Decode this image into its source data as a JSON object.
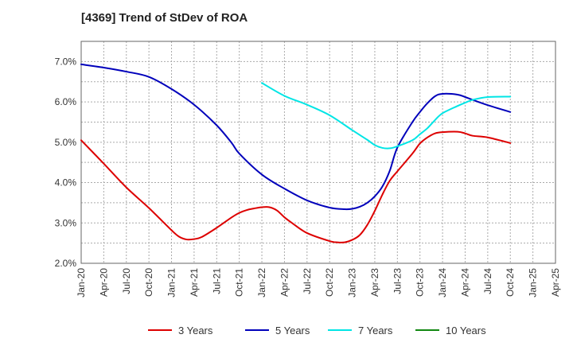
{
  "chart_data": {
    "type": "line",
    "title": "[4369]  Trend of StDev of ROA",
    "y_ticks": [
      "2.0%",
      "3.0%",
      "4.0%",
      "5.0%",
      "6.0%",
      "7.0%"
    ],
    "y_tick_values": [
      2.0,
      3.0,
      4.0,
      5.0,
      6.0,
      7.0
    ],
    "ylim": [
      2.0,
      7.5
    ],
    "x_ticks": [
      "Jan-20",
      "Apr-20",
      "Jul-20",
      "Oct-20",
      "Jan-21",
      "Apr-21",
      "Jul-21",
      "Oct-21",
      "Jan-22",
      "Apr-22",
      "Jul-22",
      "Oct-22",
      "Jan-23",
      "Apr-23",
      "Jul-23",
      "Oct-23",
      "Jan-24",
      "Apr-24",
      "Jul-24",
      "Oct-24",
      "Jan-25",
      "Apr-25"
    ],
    "xlim": [
      0,
      63
    ],
    "grid": true,
    "legend_position": "bottom",
    "series": [
      {
        "name": "3 Years",
        "color": "#dd0000",
        "x": [
          0,
          3,
          6,
          9,
          12,
          13,
          14,
          15,
          16,
          18,
          20,
          21,
          22,
          23,
          24,
          25,
          26,
          27,
          28,
          30,
          33,
          34,
          35,
          36,
          37,
          38,
          39,
          40,
          41,
          42,
          44,
          45,
          46,
          47,
          48,
          50,
          51,
          52,
          54,
          57
        ],
        "values": [
          5.05,
          4.47,
          3.88,
          3.37,
          2.82,
          2.66,
          2.59,
          2.6,
          2.65,
          2.88,
          3.14,
          3.25,
          3.32,
          3.36,
          3.39,
          3.39,
          3.31,
          3.14,
          3.0,
          2.75,
          2.55,
          2.52,
          2.52,
          2.58,
          2.7,
          2.95,
          3.3,
          3.7,
          4.05,
          4.28,
          4.72,
          4.97,
          5.12,
          5.22,
          5.25,
          5.26,
          5.22,
          5.16,
          5.12,
          4.98
        ]
      },
      {
        "name": "5 Years",
        "color": "#0000bb",
        "x": [
          0,
          3,
          6,
          9,
          12,
          15,
          18,
          20,
          21,
          24,
          27,
          30,
          33,
          35,
          36,
          37,
          38,
          39,
          40,
          41,
          42,
          44,
          45,
          46,
          47,
          48,
          50,
          51,
          52,
          54,
          57
        ],
        "values": [
          6.93,
          6.85,
          6.75,
          6.62,
          6.32,
          5.93,
          5.42,
          4.98,
          4.72,
          4.2,
          3.85,
          3.56,
          3.38,
          3.34,
          3.35,
          3.4,
          3.5,
          3.66,
          3.9,
          4.3,
          4.87,
          5.5,
          5.75,
          5.97,
          6.14,
          6.2,
          6.18,
          6.12,
          6.05,
          5.92,
          5.75
        ]
      },
      {
        "name": "7 Years",
        "color": "#00e5e5",
        "x": [
          24,
          27,
          30,
          33,
          36,
          38,
          39,
          40,
          41,
          42,
          44,
          45,
          46,
          47,
          48,
          50,
          51,
          52,
          54,
          57
        ],
        "values": [
          6.47,
          6.15,
          5.93,
          5.67,
          5.3,
          5.06,
          4.93,
          4.86,
          4.85,
          4.9,
          5.05,
          5.2,
          5.35,
          5.55,
          5.72,
          5.9,
          5.98,
          6.05,
          6.12,
          6.13
        ]
      },
      {
        "name": "10 Years",
        "color": "#118811",
        "x": [],
        "values": []
      }
    ]
  }
}
